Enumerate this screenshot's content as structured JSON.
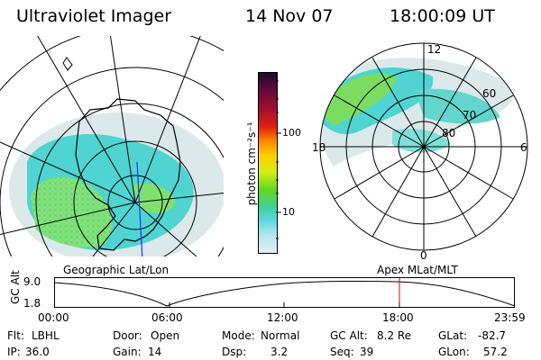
{
  "header": {
    "instrument": "Ultraviolet Imager",
    "date": "14 Nov 07",
    "time": "18:00:09 UT"
  },
  "colorbar": {
    "unit_label": "photon cm⁻²s⁻¹",
    "ticks": [
      "100",
      "10"
    ]
  },
  "polar_plot": {
    "mlt_labels": {
      "top": "12",
      "left": "18",
      "right": "6",
      "bottom": "0"
    },
    "lat_labels": [
      "60",
      "70",
      "80"
    ]
  },
  "timeline": {
    "left_label": "Geographic Lat/Lon",
    "right_label": "Apex MLat/MLT",
    "axis_title": "GC Alt",
    "y_ticks": [
      "9.0",
      "1.8"
    ],
    "x_ticks": [
      "00:00",
      "06:00",
      "12:00",
      "18:00",
      "23:59"
    ],
    "marker_color": "#e00000"
  },
  "status": {
    "row1": [
      {
        "key": "Flt:",
        "value": "LBHL"
      },
      {
        "key": "Door:",
        "value": "Open"
      },
      {
        "key": "Mode:",
        "value": "Normal"
      },
      {
        "key": "GC Alt:",
        "value": "8.2 Re"
      },
      {
        "key": "GLat:",
        "value": "-82.7"
      }
    ],
    "row2": [
      {
        "key": "IP:",
        "value": "36.0"
      },
      {
        "key": "Gain:",
        "value": "14"
      },
      {
        "key": "Dsp:",
        "value": "3.2"
      },
      {
        "key": "Seq:",
        "value": "39"
      },
      {
        "key": "GLon:",
        "value": "57.2"
      }
    ]
  }
}
